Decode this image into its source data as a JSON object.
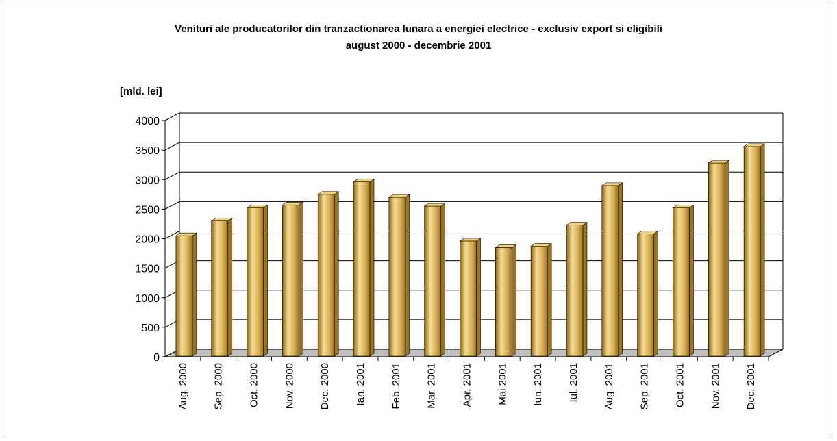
{
  "chart_data": {
    "type": "bar",
    "title": "Venituri ale producatorilor din tranzactionarea lunara a energiei electrice - exclusiv export si eligibili",
    "subtitle": "august 2000 - decembrie 2001",
    "y_label": "[mld. lei]",
    "categories": [
      "Aug. 2000",
      "Sep. 2000",
      "Oct. 2000",
      "Nov. 2000",
      "Dec. 2000",
      "Ian. 2001",
      "Feb. 2001",
      "Mar. 2001",
      "Apr. 2001",
      "Mai 2001",
      "Iun. 2001",
      "Iul. 2001",
      "Aug. 2001",
      "Sep. 2001",
      "Oct. 2001",
      "Nov. 2001",
      "Dec. 2001"
    ],
    "values": [
      2050,
      2300,
      2520,
      2570,
      2750,
      2960,
      2700,
      2550,
      1960,
      1850,
      1870,
      2230,
      2900,
      2080,
      2520,
      3280,
      3560
    ],
    "color": "#d9b158",
    "ylim": [
      0,
      4000
    ],
    "yticks": [
      0,
      500,
      1000,
      1500,
      2000,
      2500,
      3000,
      3500,
      4000
    ],
    "grid": true
  }
}
